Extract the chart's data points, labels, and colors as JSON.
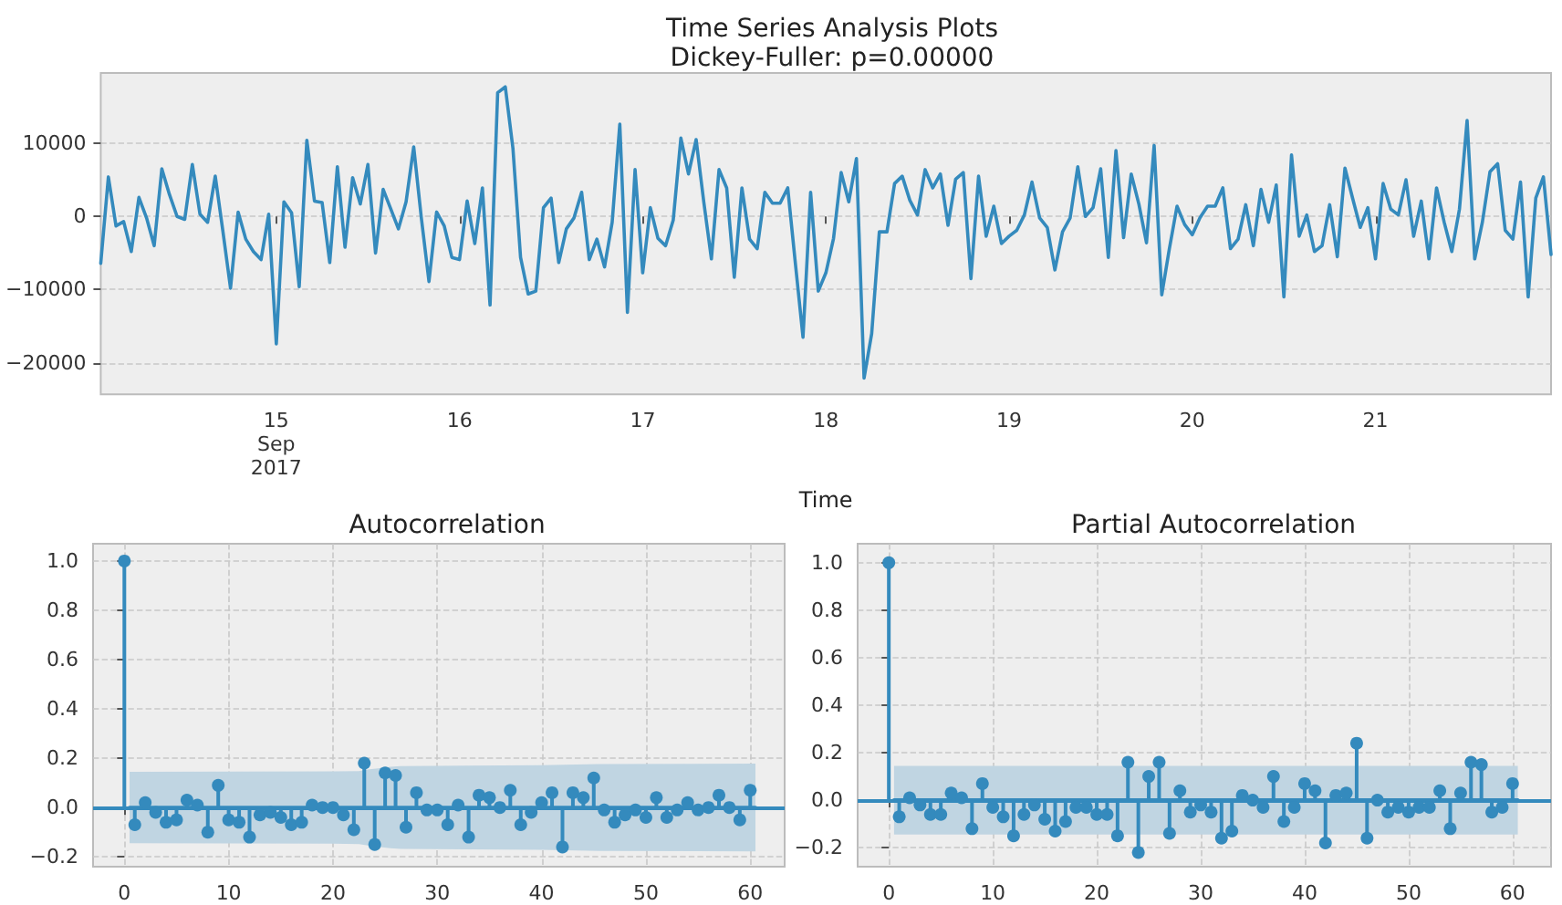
{
  "chart_data": [
    {
      "type": "line",
      "title": "Time Series Analysis Plots",
      "subtitle": "Dickey-Fuller: p=0.00000",
      "xlabel": "Time",
      "color": "#348abd",
      "grid": "y",
      "x": [
        "2017-09-14T01:00",
        "2017-09-14T02:00",
        "2017-09-14T03:00",
        "2017-09-14T04:00",
        "2017-09-14T05:00",
        "2017-09-14T06:00",
        "2017-09-14T07:00",
        "2017-09-14T08:00",
        "2017-09-14T09:00",
        "2017-09-14T10:00",
        "2017-09-14T11:00",
        "2017-09-14T12:00",
        "2017-09-14T13:00",
        "2017-09-14T14:00",
        "2017-09-14T15:00",
        "2017-09-14T16:00",
        "2017-09-14T17:00",
        "2017-09-14T18:00",
        "2017-09-14T19:00",
        "2017-09-14T20:00",
        "2017-09-14T21:00",
        "2017-09-14T22:00",
        "2017-09-14T23:00",
        "2017-09-15T00:00",
        "2017-09-15T01:00",
        "2017-09-15T02:00",
        "2017-09-15T03:00",
        "2017-09-15T04:00",
        "2017-09-15T05:00",
        "2017-09-15T06:00",
        "2017-09-15T07:00",
        "2017-09-15T08:00",
        "2017-09-15T09:00",
        "2017-09-15T10:00",
        "2017-09-15T11:00",
        "2017-09-15T12:00",
        "2017-09-15T13:00",
        "2017-09-15T14:00",
        "2017-09-15T15:00",
        "2017-09-15T16:00",
        "2017-09-15T17:00",
        "2017-09-15T18:00",
        "2017-09-15T19:00",
        "2017-09-15T20:00",
        "2017-09-15T21:00",
        "2017-09-15T22:00",
        "2017-09-15T23:00",
        "2017-09-16T00:00",
        "2017-09-16T01:00",
        "2017-09-16T02:00",
        "2017-09-16T03:00",
        "2017-09-16T04:00",
        "2017-09-16T05:00",
        "2017-09-16T06:00",
        "2017-09-16T07:00",
        "2017-09-16T08:00",
        "2017-09-16T09:00",
        "2017-09-16T10:00",
        "2017-09-16T11:00",
        "2017-09-16T12:00",
        "2017-09-16T13:00",
        "2017-09-16T14:00",
        "2017-09-16T15:00",
        "2017-09-16T16:00",
        "2017-09-16T17:00",
        "2017-09-16T18:00",
        "2017-09-16T19:00",
        "2017-09-16T20:00",
        "2017-09-16T21:00",
        "2017-09-16T22:00",
        "2017-09-16T23:00",
        "2017-09-17T00:00",
        "2017-09-17T01:00",
        "2017-09-17T02:00",
        "2017-09-17T03:00",
        "2017-09-17T04:00",
        "2017-09-17T05:00",
        "2017-09-17T06:00",
        "2017-09-17T07:00",
        "2017-09-17T08:00",
        "2017-09-17T09:00",
        "2017-09-17T10:00",
        "2017-09-17T11:00",
        "2017-09-17T12:00",
        "2017-09-17T13:00",
        "2017-09-17T14:00",
        "2017-09-17T15:00",
        "2017-09-17T16:00",
        "2017-09-17T17:00",
        "2017-09-17T18:00",
        "2017-09-17T19:00",
        "2017-09-17T20:00",
        "2017-09-17T21:00",
        "2017-09-17T22:00",
        "2017-09-17T23:00",
        "2017-09-18T00:00",
        "2017-09-18T01:00",
        "2017-09-18T02:00",
        "2017-09-18T03:00",
        "2017-09-18T04:00",
        "2017-09-18T05:00",
        "2017-09-18T06:00",
        "2017-09-18T07:00",
        "2017-09-18T08:00",
        "2017-09-18T09:00",
        "2017-09-18T10:00",
        "2017-09-18T11:00",
        "2017-09-18T12:00",
        "2017-09-18T13:00",
        "2017-09-18T14:00",
        "2017-09-18T15:00",
        "2017-09-18T16:00",
        "2017-09-18T17:00",
        "2017-09-18T18:00",
        "2017-09-18T19:00",
        "2017-09-18T20:00",
        "2017-09-18T21:00",
        "2017-09-18T22:00",
        "2017-09-18T23:00",
        "2017-09-19T00:00",
        "2017-09-19T01:00",
        "2017-09-19T02:00",
        "2017-09-19T03:00",
        "2017-09-19T04:00",
        "2017-09-19T05:00",
        "2017-09-19T06:00",
        "2017-09-19T07:00",
        "2017-09-19T08:00",
        "2017-09-19T09:00",
        "2017-09-19T10:00",
        "2017-09-19T11:00",
        "2017-09-19T12:00",
        "2017-09-19T13:00",
        "2017-09-19T14:00",
        "2017-09-19T15:00",
        "2017-09-19T16:00",
        "2017-09-19T17:00",
        "2017-09-19T18:00",
        "2017-09-19T19:00",
        "2017-09-19T20:00",
        "2017-09-19T21:00",
        "2017-09-19T22:00",
        "2017-09-19T23:00",
        "2017-09-20T00:00",
        "2017-09-20T01:00",
        "2017-09-20T02:00",
        "2017-09-20T03:00",
        "2017-09-20T04:00",
        "2017-09-20T05:00",
        "2017-09-20T06:00",
        "2017-09-20T07:00",
        "2017-09-20T08:00",
        "2017-09-20T09:00",
        "2017-09-20T10:00",
        "2017-09-20T11:00",
        "2017-09-20T12:00",
        "2017-09-20T13:00",
        "2017-09-20T14:00",
        "2017-09-20T15:00",
        "2017-09-20T16:00",
        "2017-09-20T17:00",
        "2017-09-20T18:00",
        "2017-09-20T19:00",
        "2017-09-20T20:00",
        "2017-09-20T21:00",
        "2017-09-20T22:00",
        "2017-09-20T23:00",
        "2017-09-21T00:00",
        "2017-09-21T01:00",
        "2017-09-21T02:00",
        "2017-09-21T03:00",
        "2017-09-21T04:00",
        "2017-09-21T05:00",
        "2017-09-21T06:00",
        "2017-09-21T07:00",
        "2017-09-21T08:00",
        "2017-09-21T09:00",
        "2017-09-21T10:00",
        "2017-09-21T11:00",
        "2017-09-21T12:00",
        "2017-09-21T13:00",
        "2017-09-21T14:00",
        "2017-09-21T15:00",
        "2017-09-21T16:00",
        "2017-09-21T17:00",
        "2017-09-21T18:00",
        "2017-09-21T19:00",
        "2017-09-21T20:00",
        "2017-09-21T21:00",
        "2017-09-21T22:00",
        "2017-09-21T23:00"
      ],
      "values": [
        -6400,
        5400,
        -1300,
        -700,
        -4800,
        2600,
        -200,
        -4000,
        6500,
        3000,
        0,
        -400,
        7100,
        300,
        -800,
        5500,
        -2000,
        -9800,
        600,
        -3100,
        -4800,
        -5900,
        300,
        -17400,
        2000,
        500,
        -9600,
        10400,
        2100,
        1900,
        -6300,
        6800,
        -4200,
        5300,
        1700,
        7100,
        -5000,
        3700,
        1000,
        -1700,
        2000,
        9500,
        -200,
        -8900,
        600,
        -1300,
        -5600,
        -5900,
        2100,
        -3700,
        3900,
        -12100,
        16900,
        17700,
        9300,
        -5600,
        -10600,
        -10200,
        1200,
        2500,
        -6300,
        -1700,
        -200,
        3300,
        -5900,
        -3100,
        -6900,
        -800,
        12600,
        -13100,
        6400,
        -7700,
        1200,
        -3000,
        -4000,
        -500,
        10700,
        5800,
        10500,
        2000,
        -5800,
        6400,
        3900,
        -8300,
        3900,
        -3100,
        -4400,
        3300,
        1800,
        1800,
        3900,
        -6400,
        -16500,
        3300,
        -10200,
        -7700,
        -3000,
        6000,
        2000,
        7900,
        -22100,
        -16000,
        -2100,
        -2100,
        4500,
        5500,
        2200,
        200,
        6400,
        3900,
        5800,
        -1200,
        5100,
        6000,
        -8500,
        5500,
        -2700,
        1400,
        -3700,
        -2700,
        -1900,
        200,
        4700,
        -200,
        -1500,
        -7300,
        -2100,
        -200,
        6800,
        0,
        1200,
        6500,
        -5600,
        9000,
        -2900,
        5800,
        1700,
        -3600,
        9700,
        -10700,
        -4400,
        1400,
        -1100,
        -2500,
        -200,
        1400,
        1400,
        3900,
        -4400,
        -3100,
        1600,
        -4000,
        3700,
        -800,
        4300,
        -11000,
        8400,
        -2700,
        200,
        -4800,
        -4000,
        1600,
        -5500,
        6600,
        2500,
        -1500,
        1200,
        -5800,
        4500,
        1000,
        200,
        5000,
        -2700,
        2100,
        -5800,
        3900,
        -800,
        -4800,
        1000,
        13100,
        -5800,
        -800,
        6100,
        7200,
        -1900,
        -3100,
        4700,
        -11000,
        2500,
        5400,
        -5200
      ],
      "xlim": [
        "2017-09-14T01:00",
        "2017-09-21T23:00"
      ],
      "xticks": [
        {
          "value": "2017-09-15T00:00",
          "label": "15\nSep\n2017"
        },
        {
          "value": "2017-09-16T00:00",
          "label": "16"
        },
        {
          "value": "2017-09-17T00:00",
          "label": "17"
        },
        {
          "value": "2017-09-18T00:00",
          "label": "18"
        },
        {
          "value": "2017-09-19T00:00",
          "label": "19"
        },
        {
          "value": "2017-09-20T00:00",
          "label": "20"
        },
        {
          "value": "2017-09-21T00:00",
          "label": "21"
        }
      ],
      "ylim": [
        -24300,
        19600
      ],
      "yticks": [
        {
          "value": -20000,
          "label": "−20000"
        },
        {
          "value": -10000,
          "label": "−10000"
        },
        0,
        10000
      ]
    },
    {
      "type": "lollipop",
      "title": "Autocorrelation",
      "grid": true,
      "x": [
        0,
        1,
        2,
        3,
        4,
        5,
        6,
        7,
        8,
        9,
        10,
        11,
        12,
        13,
        14,
        15,
        16,
        17,
        18,
        19,
        20,
        21,
        22,
        23,
        24,
        25,
        26,
        27,
        28,
        29,
        30,
        31,
        32,
        33,
        34,
        35,
        36,
        37,
        38,
        39,
        40,
        41,
        42,
        43,
        44,
        45,
        46,
        47,
        48,
        49,
        50,
        51,
        52,
        53,
        54,
        55,
        56,
        57,
        58,
        59,
        60
      ],
      "series": [
        {
          "type": "lollipop",
          "color": "#348abd",
          "marker": "circle",
          "values": [
            1.0,
            -0.07,
            0.02,
            -0.02,
            -0.06,
            -0.05,
            0.03,
            0.01,
            -0.1,
            0.09,
            -0.05,
            -0.06,
            -0.12,
            -0.03,
            -0.02,
            -0.04,
            -0.07,
            -0.06,
            0.01,
            0.0,
            0.0,
            -0.03,
            -0.09,
            0.18,
            -0.15,
            0.14,
            0.13,
            -0.08,
            0.06,
            -0.01,
            -0.01,
            -0.07,
            0.01,
            -0.12,
            0.05,
            0.04,
            0.0,
            0.07,
            -0.07,
            -0.02,
            0.02,
            0.06,
            -0.16,
            0.06,
            0.04,
            0.12,
            -0.01,
            -0.06,
            -0.03,
            -0.01,
            -0.04,
            0.04,
            -0.04,
            -0.01,
            0.02,
            -0.01,
            0.0,
            0.05,
            0.0,
            -0.05,
            0.07
          ]
        },
        {
          "type": "line",
          "color": "#348abd",
          "x": [
            0.5,
            10,
            20,
            22.5,
            23.5,
            24.5,
            25.5,
            26.5,
            40,
            45.5,
            60.5
          ],
          "values": [
            0,
            0,
            0,
            0,
            0,
            0,
            0,
            0,
            0,
            0,
            0
          ],
          "upper": [
            0.145,
            0.146,
            0.147,
            0.148,
            0.155,
            0.16,
            0.165,
            0.168,
            0.172,
            0.176,
            0.178
          ],
          "lower": [
            -0.145,
            -0.146,
            -0.147,
            -0.148,
            -0.155,
            -0.16,
            -0.165,
            -0.168,
            -0.172,
            -0.176,
            -0.178
          ]
        }
      ],
      "ref_lines": [
        {
          "axis": "y",
          "value": 0,
          "color": "#348abd"
        }
      ],
      "xlim": [
        -3,
        63.3
      ],
      "xticks": [
        0,
        10,
        20,
        30,
        40,
        50,
        60
      ],
      "ylim": [
        -0.24,
        1.07
      ],
      "yticks": [
        {
          "value": -0.2,
          "label": "−0.2"
        },
        {
          "value": 0,
          "label": "0.0"
        },
        0.2,
        0.4,
        0.6,
        0.8,
        {
          "value": 1,
          "label": "1.0"
        }
      ]
    },
    {
      "type": "lollipop",
      "title": "Partial Autocorrelation",
      "grid": true,
      "x": [
        0,
        1,
        2,
        3,
        4,
        5,
        6,
        7,
        8,
        9,
        10,
        11,
        12,
        13,
        14,
        15,
        16,
        17,
        18,
        19,
        20,
        21,
        22,
        23,
        24,
        25,
        26,
        27,
        28,
        29,
        30,
        31,
        32,
        33,
        34,
        35,
        36,
        37,
        38,
        39,
        40,
        41,
        42,
        43,
        44,
        45,
        46,
        47,
        48,
        49,
        50,
        51,
        52,
        53,
        54,
        55,
        56,
        57,
        58,
        59,
        60
      ],
      "series": [
        {
          "type": "lollipop",
          "color": "#348abd",
          "marker": "circle",
          "values": [
            1.0,
            -0.07,
            0.01,
            -0.02,
            -0.06,
            -0.06,
            0.03,
            0.01,
            -0.12,
            0.07,
            -0.03,
            -0.07,
            -0.15,
            -0.06,
            -0.02,
            -0.08,
            -0.13,
            -0.09,
            -0.03,
            -0.03,
            -0.06,
            -0.06,
            -0.15,
            0.16,
            -0.22,
            0.1,
            0.16,
            -0.14,
            0.04,
            -0.05,
            -0.02,
            -0.05,
            -0.16,
            -0.13,
            0.02,
            0.0,
            -0.03,
            0.1,
            -0.09,
            -0.03,
            0.07,
            0.04,
            -0.18,
            0.02,
            0.03,
            0.24,
            -0.16,
            0.0,
            -0.05,
            -0.03,
            -0.05,
            -0.03,
            -0.03,
            0.04,
            -0.12,
            0.03,
            0.16,
            0.15,
            -0.05,
            -0.03,
            0.07
          ]
        },
        {
          "type": "line",
          "color": "#348abd",
          "x": [
            0.5,
            60.5
          ],
          "values": [
            0,
            0
          ],
          "upper": [
            0.145,
            0.145
          ],
          "lower": [
            -0.145,
            -0.145
          ]
        }
      ],
      "ref_lines": [
        {
          "axis": "y",
          "value": 0,
          "color": "#348abd"
        }
      ],
      "xlim": [
        -3,
        63.7
      ],
      "xticks": [
        0,
        10,
        20,
        30,
        40,
        50,
        60
      ],
      "ylim": [
        -0.28,
        1.08
      ],
      "yticks": [
        {
          "value": -0.2,
          "label": "−0.2"
        },
        {
          "value": 0,
          "label": "0.0"
        },
        0.2,
        0.4,
        0.6,
        0.8,
        {
          "value": 1,
          "label": "1.0"
        }
      ]
    }
  ]
}
